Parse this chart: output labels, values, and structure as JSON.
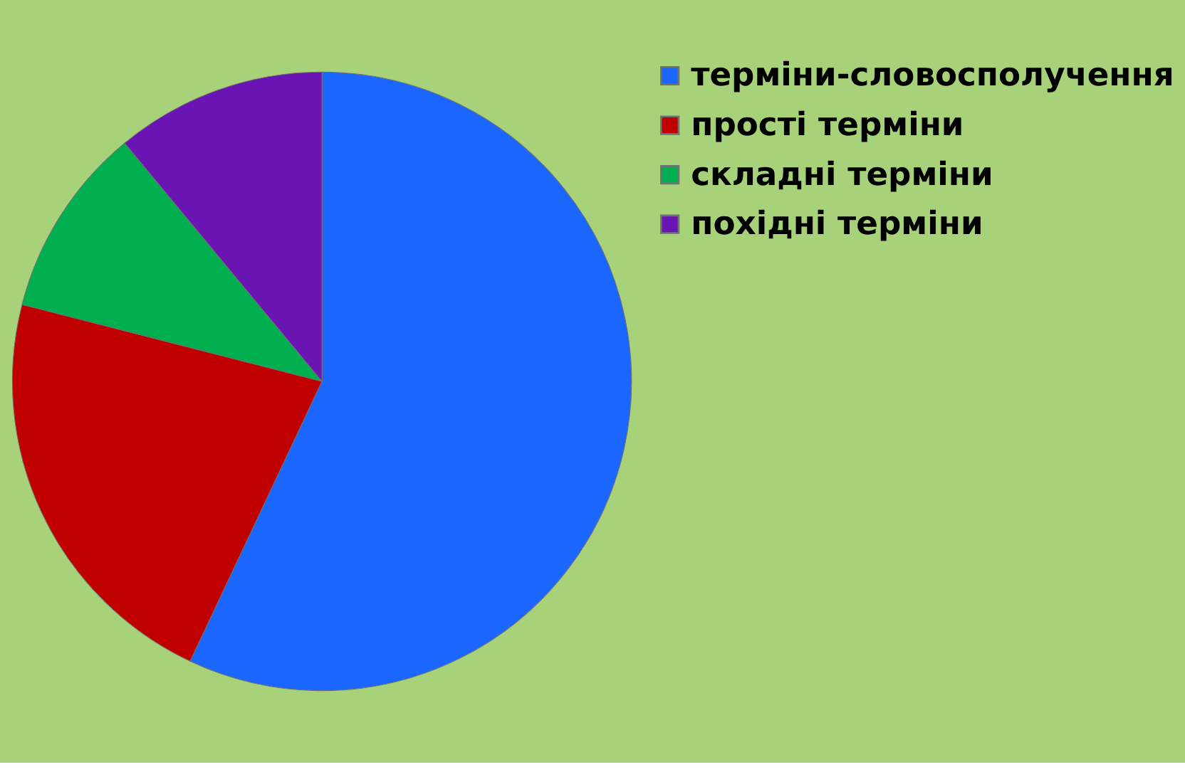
{
  "chart_data": {
    "type": "pie",
    "categories": [
      "терміни-словосполучення",
      "прості терміни",
      "складні терміни",
      "похідні терміни"
    ],
    "values": [
      57,
      22,
      10,
      11
    ],
    "colors": [
      "#1a66ff",
      "#c00000",
      "#00b050",
      "#6a14b4"
    ],
    "legend": "right"
  }
}
